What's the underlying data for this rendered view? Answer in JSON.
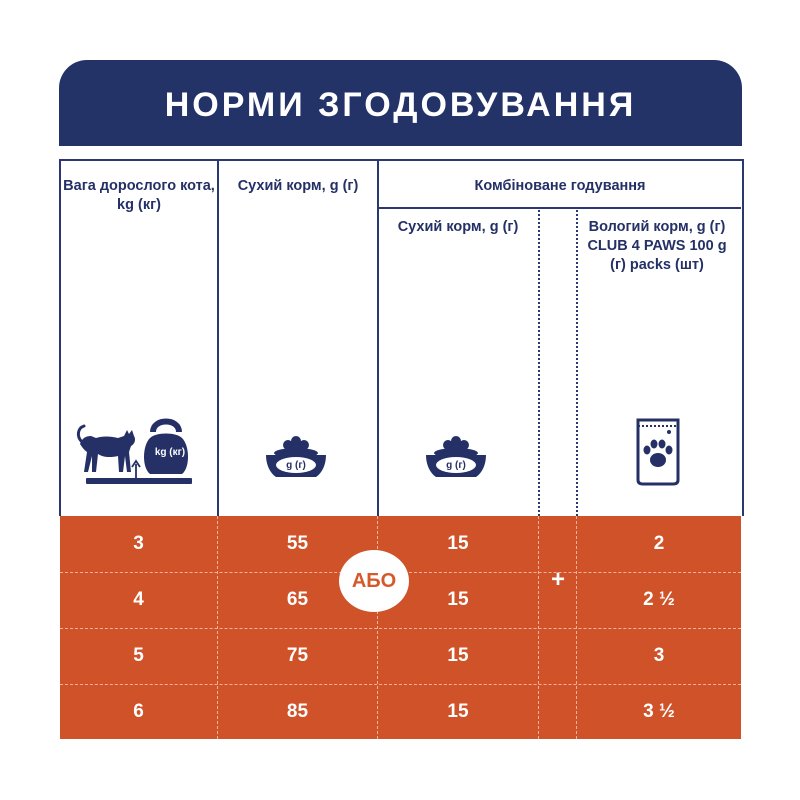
{
  "title": "НОРМИ ЗГОДОВУВАННЯ",
  "headers": {
    "weight": "Вага дорослого кота, kg (кг)",
    "dry_food": "Сухий корм, g (г)",
    "combined": "Комбіноване годування",
    "combined_dry": "Сухий корм, g (г)",
    "wet_food": "Вологий корм, g (г) CLUB 4 PAWS 100 g (г) packs (шт)"
  },
  "icons": {
    "weight_icon": "cat-on-scale-kettlebell-icon",
    "kettlebell_label": "kg (кг)",
    "bowl_icon": "food-bowl-icon",
    "bowl_label": "g (г)",
    "pouch_icon": "paw-pouch-icon"
  },
  "abo_label": "АБО",
  "plus_label": "+",
  "rows": [
    {
      "weight": "3",
      "dry": "55",
      "combined_dry": "15",
      "wet": "2"
    },
    {
      "weight": "4",
      "dry": "65",
      "combined_dry": "15",
      "wet": "2 ½"
    },
    {
      "weight": "5",
      "dry": "75",
      "combined_dry": "15",
      "wet": "3"
    },
    {
      "weight": "6",
      "dry": "85",
      "combined_dry": "15",
      "wet": "3 ½"
    }
  ],
  "colors": {
    "navy": "#233367",
    "orange": "#cf5229",
    "white": "#ffffff"
  }
}
